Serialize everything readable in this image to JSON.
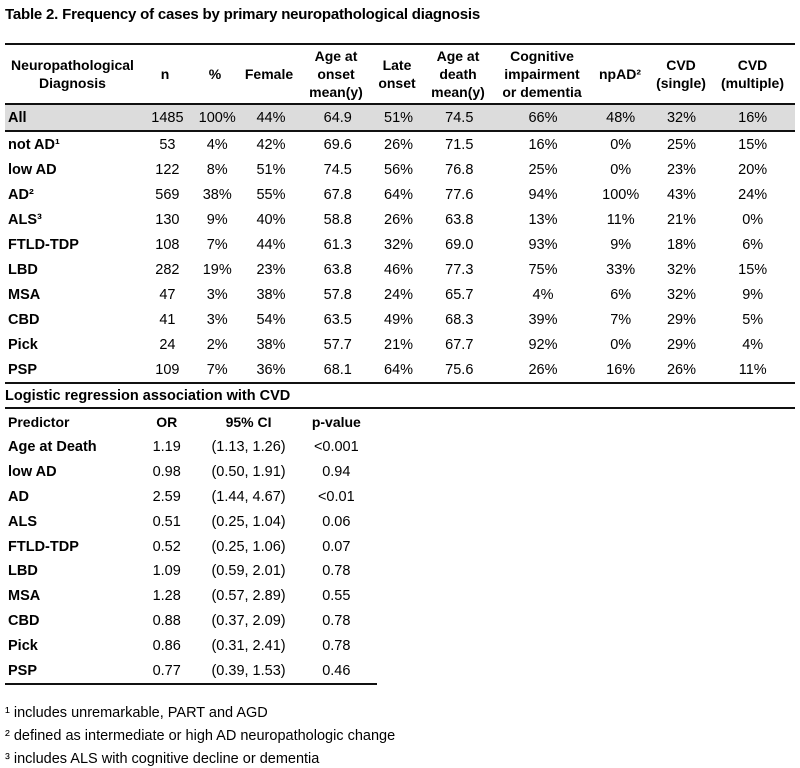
{
  "title": "Table 2. Frequency of cases by primary neuropathological diagnosis",
  "main_table": {
    "headers": [
      "Neuropathological\nDiagnosis",
      "n",
      "%",
      "Female",
      "Age at\nonset\nmean(y)",
      "Late\nonset",
      "Age at\ndeath\nmean(y)",
      "Cognitive\nimpairment\nor dementia",
      "npAD²",
      "CVD\n(single)",
      "CVD\n(multiple)"
    ],
    "rows": [
      {
        "label": "All",
        "highlight": true,
        "values": [
          "1485",
          "100%",
          "44%",
          "64.9",
          "51%",
          "74.5",
          "66%",
          "48%",
          "32%",
          "16%"
        ]
      },
      {
        "label": "not AD¹",
        "highlight": false,
        "values": [
          "53",
          "4%",
          "42%",
          "69.6",
          "26%",
          "71.5",
          "16%",
          "0%",
          "25%",
          "15%"
        ]
      },
      {
        "label": "low AD",
        "highlight": false,
        "values": [
          "122",
          "8%",
          "51%",
          "74.5",
          "56%",
          "76.8",
          "25%",
          "0%",
          "23%",
          "20%"
        ]
      },
      {
        "label": "AD²",
        "highlight": false,
        "values": [
          "569",
          "38%",
          "55%",
          "67.8",
          "64%",
          "77.6",
          "94%",
          "100%",
          "43%",
          "24%"
        ]
      },
      {
        "label": "ALS³",
        "highlight": false,
        "values": [
          "130",
          "9%",
          "40%",
          "58.8",
          "26%",
          "63.8",
          "13%",
          "11%",
          "21%",
          "0%"
        ]
      },
      {
        "label": "FTLD-TDP",
        "highlight": false,
        "values": [
          "108",
          "7%",
          "44%",
          "61.3",
          "32%",
          "69.0",
          "93%",
          "9%",
          "18%",
          "6%"
        ]
      },
      {
        "label": "LBD",
        "highlight": false,
        "values": [
          "282",
          "19%",
          "23%",
          "63.8",
          "46%",
          "77.3",
          "75%",
          "33%",
          "32%",
          "15%"
        ]
      },
      {
        "label": "MSA",
        "highlight": false,
        "values": [
          "47",
          "3%",
          "38%",
          "57.8",
          "24%",
          "65.7",
          "4%",
          "6%",
          "32%",
          "9%"
        ]
      },
      {
        "label": "CBD",
        "highlight": false,
        "values": [
          "41",
          "3%",
          "54%",
          "63.5",
          "49%",
          "68.3",
          "39%",
          "7%",
          "29%",
          "5%"
        ]
      },
      {
        "label": "Pick",
        "highlight": false,
        "values": [
          "24",
          "2%",
          "38%",
          "57.7",
          "21%",
          "67.7",
          "92%",
          "0%",
          "29%",
          "4%"
        ]
      },
      {
        "label": "PSP",
        "highlight": false,
        "values": [
          "109",
          "7%",
          "36%",
          "68.1",
          "64%",
          "75.6",
          "26%",
          "16%",
          "26%",
          "11%"
        ]
      }
    ]
  },
  "regression_table": {
    "title": "Logistic regression association with CVD",
    "headers": [
      "Predictor",
      "OR",
      "95% CI",
      "p-value"
    ],
    "rows": [
      {
        "label": "Age at Death",
        "or": "1.19",
        "ci": "(1.13, 1.26)",
        "p": "<0.001"
      },
      {
        "label": "low AD",
        "or": "0.98",
        "ci": "(0.50, 1.91)",
        "p": "0.94"
      },
      {
        "label": "AD",
        "or": "2.59",
        "ci": "(1.44, 4.67)",
        "p": "<0.01"
      },
      {
        "label": "ALS",
        "or": "0.51",
        "ci": "(0.25, 1.04)",
        "p": "0.06"
      },
      {
        "label": "FTLD-TDP",
        "or": "0.52",
        "ci": "(0.25, 1.06)",
        "p": "0.07"
      },
      {
        "label": "LBD",
        "or": "1.09",
        "ci": "(0.59, 2.01)",
        "p": "0.78"
      },
      {
        "label": "MSA",
        "or": "1.28",
        "ci": "(0.57, 2.89)",
        "p": "0.55"
      },
      {
        "label": "CBD",
        "or": "0.88",
        "ci": "(0.37, 2.09)",
        "p": "0.78"
      },
      {
        "label": "Pick",
        "or": "0.86",
        "ci": "(0.31, 2.41)",
        "p": "0.78"
      },
      {
        "label": "PSP",
        "or": "0.77",
        "ci": "(0.39, 1.53)",
        "p": "0.46"
      }
    ]
  },
  "footnotes": [
    "¹ includes unremarkable, PART and AGD",
    "² defined as intermediate or high AD neuropathologic change",
    "³ includes ALS with cognitive decline or dementia"
  ],
  "colors": {
    "highlight_row_bg": "#dcdcdc",
    "border": "#111111",
    "text": "#000000"
  }
}
